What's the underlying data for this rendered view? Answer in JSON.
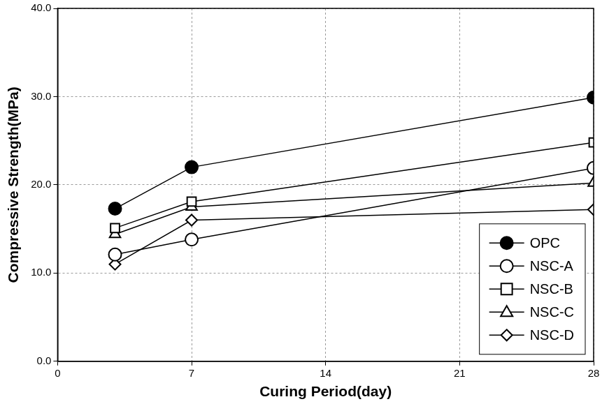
{
  "chart_data": {
    "type": "line",
    "x_label": "Curing Period(day)",
    "y_label": "Compressive Strength(MPa)",
    "x": [
      3,
      7,
      28
    ],
    "series": [
      {
        "name": "OPC",
        "color": "#000000",
        "marker": "filled_circle",
        "values": [
          17.3,
          22.0,
          29.9
        ]
      },
      {
        "name": "NSC-A",
        "color": "#000000",
        "marker": "open_circle",
        "values": [
          12.1,
          13.8,
          21.9
        ]
      },
      {
        "name": "NSC-B",
        "color": "#000000",
        "marker": "open_square",
        "values": [
          15.1,
          18.1,
          24.8
        ]
      },
      {
        "name": "NSC-C",
        "color": "#000000",
        "marker": "open_triangle",
        "values": [
          14.4,
          17.5,
          20.2
        ]
      },
      {
        "name": "NSC-D",
        "color": "#000000",
        "marker": "open_diamond",
        "values": [
          11.0,
          16.0,
          17.2
        ]
      }
    ],
    "xlim": [
      0,
      28
    ],
    "xticks": [
      0,
      7,
      14,
      21,
      28
    ],
    "ylim": [
      0,
      40
    ],
    "yticks": [
      {
        "value": 0,
        "label": "0.0"
      },
      {
        "value": 10,
        "label": "10.0"
      },
      {
        "value": 20,
        "label": "20.0"
      },
      {
        "value": 30,
        "label": "30.0"
      },
      {
        "value": 40,
        "label": "40.0"
      }
    ],
    "grid": true,
    "legend": "lower right"
  }
}
